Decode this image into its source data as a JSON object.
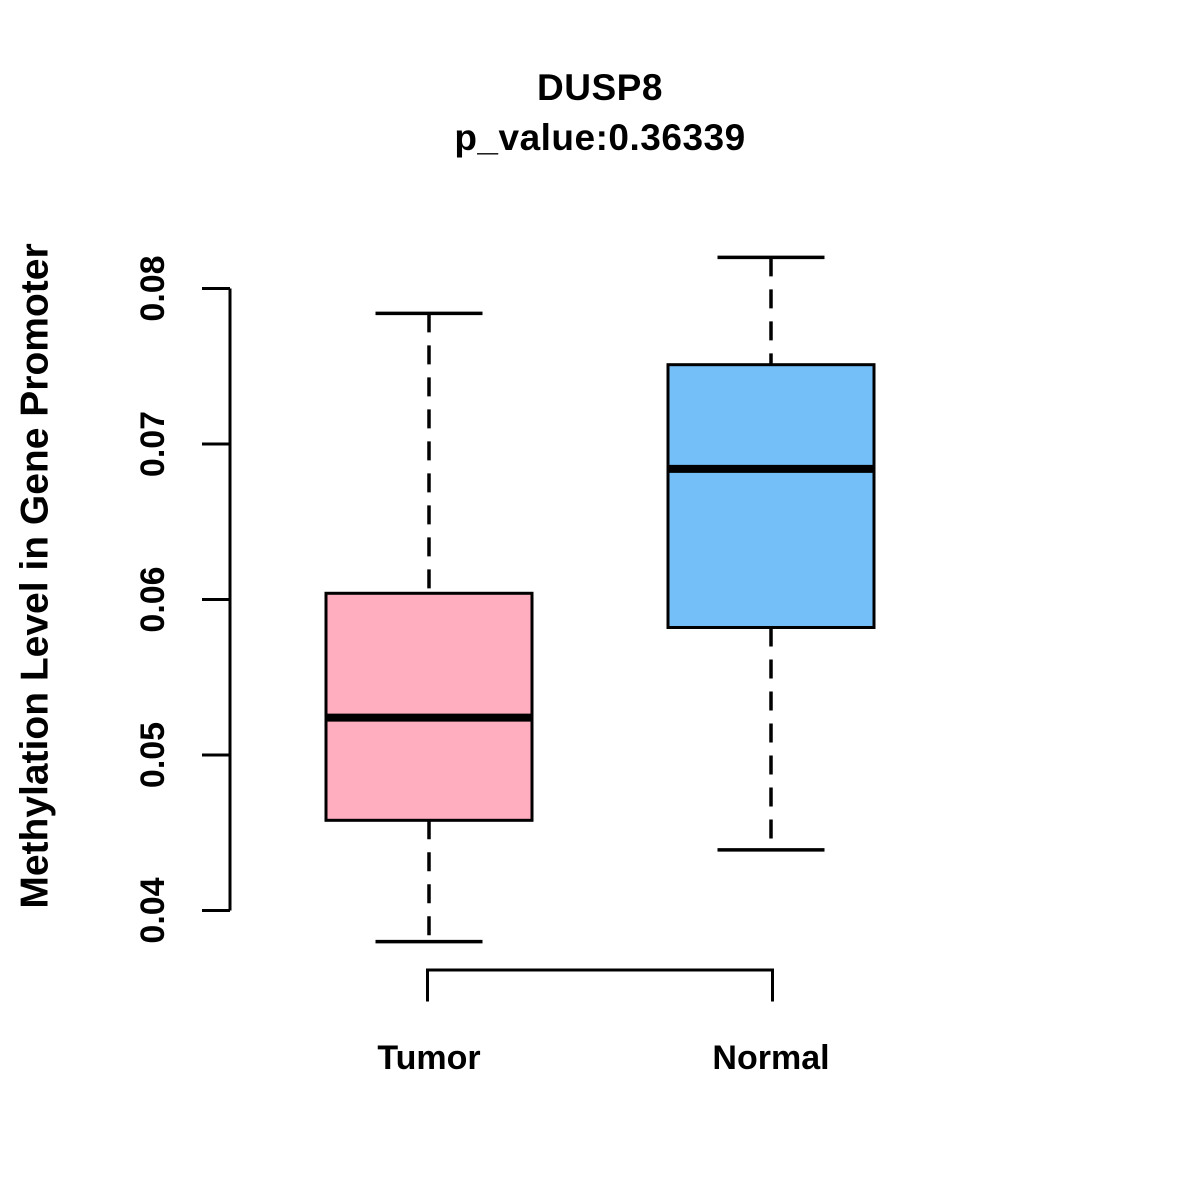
{
  "chart_data": {
    "type": "boxplot",
    "title": "DUSP8",
    "subtitle": "p_value:0.36339",
    "ylabel": "Methylation Level in Gene Promoter",
    "xlabel": "",
    "categories": [
      "Tumor",
      "Normal"
    ],
    "yticks": [
      0.04,
      0.05,
      0.06,
      0.07,
      0.08
    ],
    "ytick_labels": [
      "0.04",
      "0.05",
      "0.06",
      "0.07",
      "0.08"
    ],
    "ylim": [
      0.038,
      0.082
    ],
    "grid": false,
    "legend": null,
    "series": [
      {
        "name": "Tumor",
        "fill_color": "#FFAEC0",
        "stroke_color": "#000000",
        "whisker_low": 0.038,
        "q1": 0.0458,
        "median": 0.0524,
        "q3": 0.0604,
        "whisker_high": 0.0784
      },
      {
        "name": "Normal",
        "fill_color": "#74BFF7",
        "stroke_color": "#000000",
        "whisker_low": 0.0439,
        "q1": 0.0582,
        "median": 0.0684,
        "q3": 0.0751,
        "whisker_high": 0.082
      }
    ],
    "axis_color": "#000000"
  }
}
